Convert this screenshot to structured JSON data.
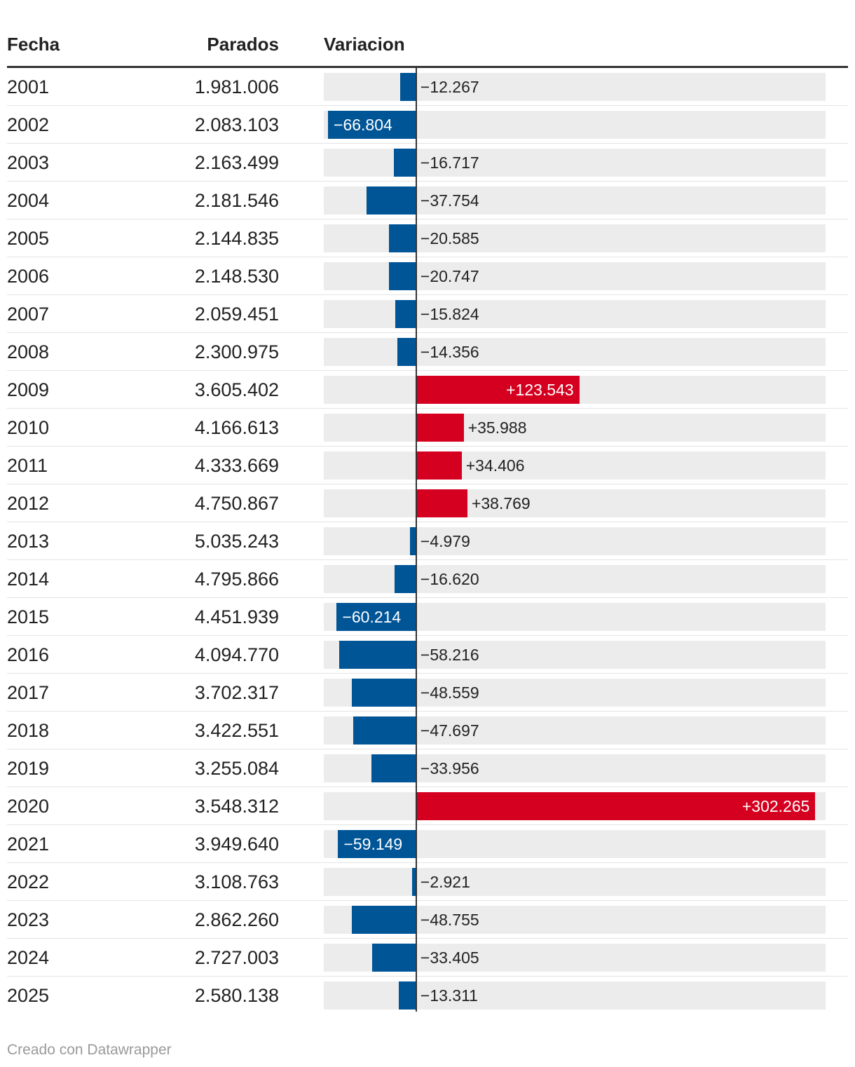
{
  "table": {
    "headers": {
      "fecha": "Fecha",
      "parados": "Parados",
      "variacion": "Variacion"
    },
    "footer": "Creado con Datawrapper"
  },
  "chart_data": {
    "type": "table",
    "columns": [
      "Fecha",
      "Parados",
      "Variacion"
    ],
    "bar_column": "Variacion",
    "colors": {
      "negative": "#005597",
      "positive": "#d5001f",
      "track": "#ececec"
    },
    "x_range": [
      -70000,
      310000
    ],
    "rows": [
      {
        "year": "2001",
        "parados": "1.981.006",
        "variacion": -12267,
        "label": "−12.267"
      },
      {
        "year": "2002",
        "parados": "2.083.103",
        "variacion": -66804,
        "label": "−66.804"
      },
      {
        "year": "2003",
        "parados": "2.163.499",
        "variacion": -16717,
        "label": "−16.717"
      },
      {
        "year": "2004",
        "parados": "2.181.546",
        "variacion": -37754,
        "label": "−37.754"
      },
      {
        "year": "2005",
        "parados": "2.144.835",
        "variacion": -20585,
        "label": "−20.585"
      },
      {
        "year": "2006",
        "parados": "2.148.530",
        "variacion": -20747,
        "label": "−20.747"
      },
      {
        "year": "2007",
        "parados": "2.059.451",
        "variacion": -15824,
        "label": "−15.824"
      },
      {
        "year": "2008",
        "parados": "2.300.975",
        "variacion": -14356,
        "label": "−14.356"
      },
      {
        "year": "2009",
        "parados": "3.605.402",
        "variacion": 123543,
        "label": "+123.543"
      },
      {
        "year": "2010",
        "parados": "4.166.613",
        "variacion": 35988,
        "label": "+35.988"
      },
      {
        "year": "2011",
        "parados": "4.333.669",
        "variacion": 34406,
        "label": "+34.406"
      },
      {
        "year": "2012",
        "parados": "4.750.867",
        "variacion": 38769,
        "label": "+38.769"
      },
      {
        "year": "2013",
        "parados": "5.035.243",
        "variacion": -4979,
        "label": "−4.979"
      },
      {
        "year": "2014",
        "parados": "4.795.866",
        "variacion": -16620,
        "label": "−16.620"
      },
      {
        "year": "2015",
        "parados": "4.451.939",
        "variacion": -60214,
        "label": "−60.214"
      },
      {
        "year": "2016",
        "parados": "4.094.770",
        "variacion": -58216,
        "label": "−58.216"
      },
      {
        "year": "2017",
        "parados": "3.702.317",
        "variacion": -48559,
        "label": "−48.559"
      },
      {
        "year": "2018",
        "parados": "3.422.551",
        "variacion": -47697,
        "label": "−47.697"
      },
      {
        "year": "2019",
        "parados": "3.255.084",
        "variacion": -33956,
        "label": "−33.956"
      },
      {
        "year": "2020",
        "parados": "3.548.312",
        "variacion": 302265,
        "label": "+302.265"
      },
      {
        "year": "2021",
        "parados": "3.949.640",
        "variacion": -59149,
        "label": "−59.149"
      },
      {
        "year": "2022",
        "parados": "3.108.763",
        "variacion": -2921,
        "label": "−2.921"
      },
      {
        "year": "2023",
        "parados": "2.862.260",
        "variacion": -48755,
        "label": "−48.755"
      },
      {
        "year": "2024",
        "parados": "2.727.003",
        "variacion": -33405,
        "label": "−33.405"
      },
      {
        "year": "2025",
        "parados": "2.580.138",
        "variacion": -13311,
        "label": "−13.311"
      }
    ]
  }
}
